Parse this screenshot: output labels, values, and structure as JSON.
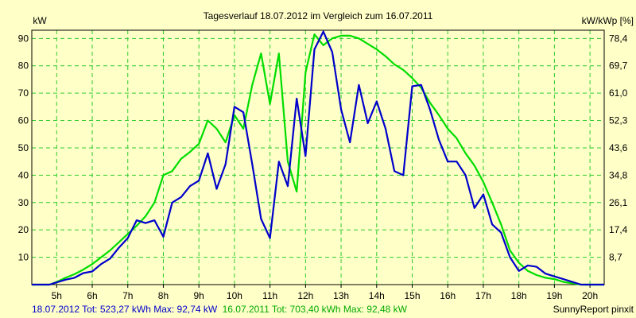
{
  "chart_data": {
    "type": "line",
    "title": "Tagesverlauf 18.07.2012 im Vergleich zum 16.07.2011",
    "ylabel_left": "kW",
    "ylabel_right": "kW/kWp [%]",
    "xlim": [
      4.3,
      20.4
    ],
    "ylim": [
      0,
      93
    ],
    "grid": true,
    "x_ticks": [
      5,
      6,
      7,
      8,
      9,
      10,
      11,
      12,
      13,
      14,
      15,
      16,
      17,
      18,
      19,
      20
    ],
    "x_tick_labels": [
      "5h",
      "6h",
      "7h",
      "8h",
      "9h",
      "10h",
      "11h",
      "12h",
      "13h",
      "14h",
      "15h",
      "16h",
      "17h",
      "18h",
      "19h",
      "20h"
    ],
    "y_ticks_left": [
      10,
      20,
      30,
      40,
      50,
      60,
      70,
      80,
      90
    ],
    "y_tick_labels_left": [
      "10",
      "20",
      "30",
      "40",
      "50",
      "60",
      "70",
      "80",
      "90"
    ],
    "y_ticks_right": [
      8.7,
      17.4,
      26.1,
      34.8,
      43.6,
      52.3,
      61.0,
      69.7,
      78.4
    ],
    "y_tick_labels_right": [
      "8,7",
      "17,4",
      "26,1",
      "34,8",
      "43,6",
      "52,3",
      "61,0",
      "69,7",
      "78,4"
    ],
    "series": [
      {
        "name": "18.07.2012",
        "color": "#0000cc",
        "x": [
          4.3,
          4.8,
          5.0,
          5.25,
          5.5,
          5.75,
          6.0,
          6.25,
          6.5,
          6.75,
          7.0,
          7.25,
          7.5,
          7.75,
          8.0,
          8.25,
          8.5,
          8.75,
          9.0,
          9.25,
          9.5,
          9.75,
          10.0,
          10.25,
          10.5,
          10.75,
          11.0,
          11.25,
          11.5,
          11.75,
          12.0,
          12.25,
          12.5,
          12.75,
          13.0,
          13.25,
          13.5,
          13.75,
          14.0,
          14.25,
          14.5,
          14.75,
          15.0,
          15.25,
          15.5,
          15.75,
          16.0,
          16.25,
          16.5,
          16.75,
          17.0,
          17.25,
          17.5,
          17.75,
          18.0,
          18.25,
          18.5,
          18.75,
          19.0,
          19.25,
          19.5,
          19.75,
          20.0,
          20.4
        ],
        "values": [
          0,
          0,
          0.8,
          1.8,
          2.5,
          4.2,
          4.8,
          7.5,
          9.5,
          13.5,
          17,
          23.5,
          22.5,
          23.5,
          17.5,
          30,
          32,
          36,
          38,
          48,
          35,
          44,
          65,
          63,
          44,
          24,
          17,
          45,
          36,
          68,
          47,
          86,
          92.5,
          85,
          64,
          52,
          73,
          59,
          67,
          57,
          41.5,
          40,
          72.5,
          73,
          64,
          53,
          45,
          45,
          40,
          28,
          33,
          22,
          19,
          10,
          5,
          7,
          6.5,
          4,
          3,
          2,
          1,
          0,
          0,
          0
        ]
      },
      {
        "name": "16.07.2011",
        "color": "#00dd00",
        "x": [
          4.3,
          4.8,
          5.0,
          5.25,
          5.5,
          5.75,
          6.0,
          6.25,
          6.5,
          6.75,
          7.0,
          7.25,
          7.5,
          7.75,
          8.0,
          8.25,
          8.5,
          8.75,
          9.0,
          9.25,
          9.5,
          9.75,
          10.0,
          10.25,
          10.5,
          10.75,
          11.0,
          11.25,
          11.5,
          11.75,
          12.0,
          12.25,
          12.5,
          12.75,
          13.0,
          13.25,
          13.5,
          13.75,
          14.0,
          14.25,
          14.5,
          14.75,
          15.0,
          15.25,
          15.5,
          15.75,
          16.0,
          16.25,
          16.5,
          16.75,
          17.0,
          17.25,
          17.5,
          17.75,
          18.0,
          18.25,
          18.5,
          18.75,
          19.0,
          19.25,
          19.5,
          19.75,
          20.0,
          20.4
        ],
        "values": [
          0,
          0,
          1,
          2.5,
          3.8,
          5.5,
          7.5,
          10,
          12.5,
          15.5,
          18.5,
          21.5,
          25,
          30,
          40,
          41.5,
          46,
          48.5,
          51.5,
          60,
          57,
          52,
          62,
          57,
          73,
          84.5,
          66,
          84.5,
          45,
          34,
          77.5,
          91.5,
          87.5,
          90,
          91,
          91,
          90,
          88,
          86,
          83.5,
          80.5,
          78.5,
          75.5,
          72,
          66.5,
          62,
          57,
          53.5,
          48,
          43.5,
          37.5,
          30,
          22,
          12.5,
          8,
          5,
          3.5,
          2.5,
          2,
          1,
          0.5,
          0,
          0,
          0
        ]
      }
    ],
    "footer_2012": "18.07.2012 Tot: 523,27 kWh Max: 92,74 kW",
    "footer_2011": "16.07.2011 Tot: 703,40 kWh Max: 92,48 kW",
    "credit": "SunnyReport pinxit"
  }
}
